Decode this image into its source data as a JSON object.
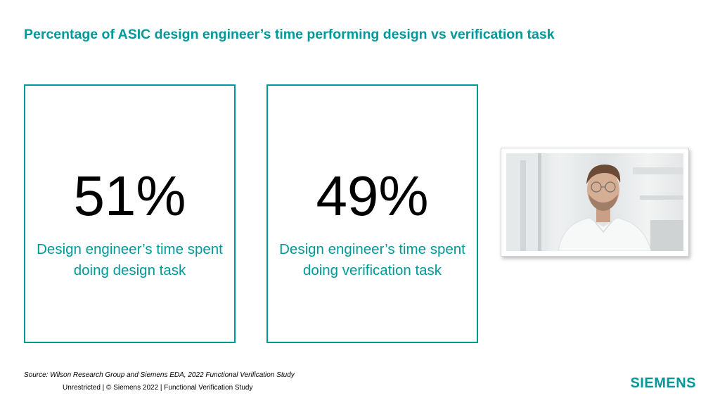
{
  "slide": {
    "title": "Percentage of ASIC design engineer’s time performing design vs verification task"
  },
  "stats": [
    {
      "value": "51%",
      "caption_line1": "Design engineer’s time spent",
      "caption_line2": "doing design task"
    },
    {
      "value": "49%",
      "caption_line1": "Design engineer’s time spent",
      "caption_line2": "doing verification task"
    }
  ],
  "footer": {
    "source": "Source:  Wilson Research Group and Siemens EDA, 2022 Functional Verification Study",
    "notice": "Unrestricted | © Siemens 2022 |  Functional Verification Study",
    "logo": "SIEMENS"
  },
  "colors": {
    "accent": "#009999",
    "text": "#000000"
  }
}
